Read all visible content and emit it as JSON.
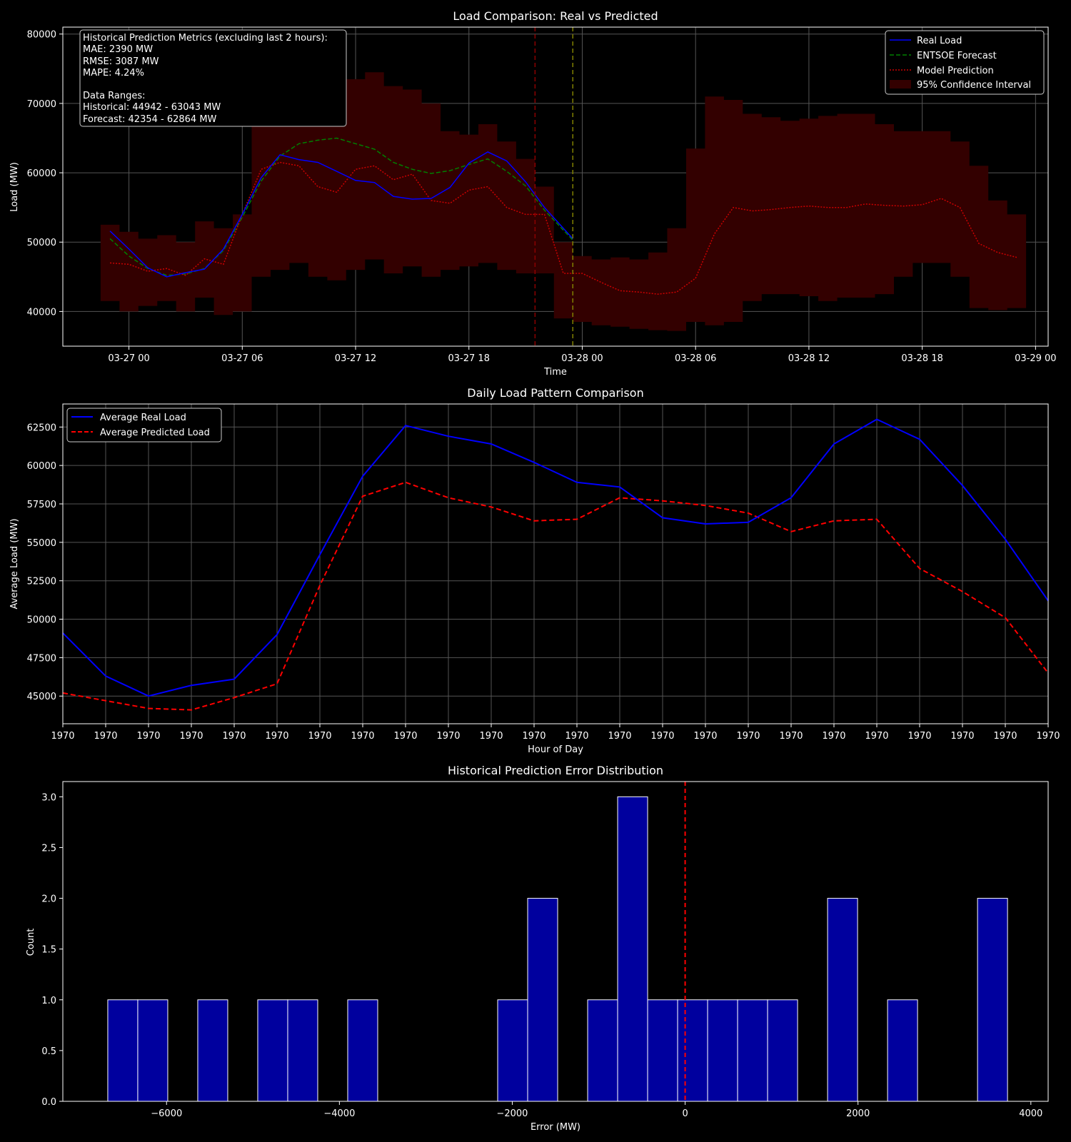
{
  "chart_data": [
    {
      "type": "line",
      "title": "Load Comparison: Real vs Predicted",
      "xlabel": "Time",
      "ylabel": "Load (MW)",
      "xlim": [
        "03-26 20:30",
        "03-29 00:40"
      ],
      "ylim": [
        35000,
        81000
      ],
      "x_ticks": [
        "03-27 00",
        "03-27 06",
        "03-27 12",
        "03-27 18",
        "03-28 00",
        "03-28 06",
        "03-28 12",
        "03-28 18",
        "03-29 00"
      ],
      "y_ticks": [
        40000,
        50000,
        60000,
        70000,
        80000
      ],
      "grid": true,
      "legend_position": "top-right",
      "legend": [
        "Real Load",
        "ENTSOE Forecast",
        "Model Prediction",
        "95% Confidence Interval"
      ],
      "colors": {
        "real": "#0000ff",
        "entsoe": "#008000",
        "model": "#cc0000",
        "band": "#330000",
        "vline_red": "#8b0000",
        "vline_yellow": "#808000"
      },
      "vlines": [
        {
          "time": "03-27 21:30",
          "style": "dashed",
          "color": "red"
        },
        {
          "time": "03-27 23:30",
          "style": "dashed",
          "color": "olive"
        }
      ],
      "annotation": {
        "lines": [
          "Historical Prediction Metrics (excluding last 2 hours):",
          "MAE: 2390 MW",
          "RMSE: 3087 MW",
          "MAPE: 4.24%",
          "",
          "Data Ranges:",
          "Historical: 44942 - 63043 MW",
          "Forecast: 42354 - 62864 MW"
        ]
      },
      "series": [
        {
          "name": "Real Load",
          "x": [
            "03-26 23:00",
            "03-27 00:00",
            "03-27 01:00",
            "03-27 02:00",
            "03-27 03:00",
            "03-27 04:00",
            "03-27 05:00",
            "03-27 06:00",
            "03-27 07:00",
            "03-27 08:00",
            "03-27 09:00",
            "03-27 10:00",
            "03-27 11:00",
            "03-27 12:00",
            "03-27 13:00",
            "03-27 14:00",
            "03-27 15:00",
            "03-27 16:00",
            "03-27 17:00",
            "03-27 18:00",
            "03-27 19:00",
            "03-27 20:00",
            "03-27 21:00",
            "03-27 22:00",
            "03-27 23:30"
          ],
          "y": [
            51600,
            49000,
            46300,
            45000,
            45600,
            46100,
            49000,
            54000,
            59300,
            62600,
            61900,
            61500,
            60200,
            58900,
            58600,
            56600,
            56200,
            56300,
            57900,
            61400,
            63000,
            61700,
            58700,
            55000,
            50500
          ]
        },
        {
          "name": "ENTSOE Forecast",
          "x": [
            "03-26 23:00",
            "03-27 00:00",
            "03-27 01:00",
            "03-27 02:00",
            "03-27 03:00",
            "03-27 04:00",
            "03-27 05:00",
            "03-27 06:00",
            "03-27 07:00",
            "03-27 08:00",
            "03-27 09:00",
            "03-27 10:00",
            "03-27 11:00",
            "03-27 12:00",
            "03-27 13:00",
            "03-27 14:00",
            "03-27 15:00",
            "03-27 16:00",
            "03-27 17:00",
            "03-27 18:00",
            "03-27 19:00",
            "03-27 20:00",
            "03-27 21:00",
            "03-27 22:00",
            "03-27 23:30"
          ],
          "y": [
            50500,
            48000,
            46200,
            45200,
            45400,
            46200,
            48800,
            53600,
            58800,
            62400,
            64200,
            64700,
            65000,
            64200,
            63400,
            61500,
            60500,
            59900,
            60300,
            61200,
            62000,
            60200,
            58100,
            54600,
            50300
          ]
        },
        {
          "name": "Model Prediction",
          "x": [
            "03-26 23:00",
            "03-27 00:00",
            "03-27 01:00",
            "03-27 02:00",
            "03-27 03:00",
            "03-27 04:00",
            "03-27 05:00",
            "03-27 06:00",
            "03-27 07:00",
            "03-27 08:00",
            "03-27 09:00",
            "03-27 10:00",
            "03-27 11:00",
            "03-27 12:00",
            "03-27 13:00",
            "03-27 14:00",
            "03-27 15:00",
            "03-27 16:00",
            "03-27 17:00",
            "03-27 18:00",
            "03-27 19:00",
            "03-27 20:00",
            "03-27 21:00",
            "03-27 22:00",
            "03-27 23:00",
            "03-28 00:00",
            "03-28 01:00",
            "03-28 02:00",
            "03-28 03:00",
            "03-28 04:00",
            "03-28 05:00",
            "03-28 06:00",
            "03-28 07:00",
            "03-28 08:00",
            "03-28 09:00",
            "03-28 10:00",
            "03-28 11:00",
            "03-28 12:00",
            "03-28 13:00",
            "03-28 14:00",
            "03-28 15:00",
            "03-28 16:00",
            "03-28 17:00",
            "03-28 18:00",
            "03-28 19:00",
            "03-28 20:00",
            "03-28 21:00",
            "03-28 22:00",
            "03-28 23:00"
          ],
          "y": [
            47000,
            46800,
            45800,
            46200,
            45200,
            47600,
            46800,
            54000,
            60500,
            61500,
            61000,
            58000,
            57200,
            60500,
            61000,
            59000,
            59800,
            56000,
            55600,
            57500,
            58000,
            55000,
            54000,
            54000,
            45500,
            45500,
            44200,
            43000,
            42800,
            42500,
            42800,
            44800,
            51200,
            55000,
            54500,
            54700,
            55000,
            55200,
            55000,
            55000,
            55500,
            55300,
            55200,
            55400,
            56300,
            55000,
            49800,
            48500,
            47800
          ]
        },
        {
          "name": "95% Confidence Interval",
          "x": [
            "03-26 23:00",
            "03-27 00:00",
            "03-27 01:00",
            "03-27 02:00",
            "03-27 03:00",
            "03-27 04:00",
            "03-27 05:00",
            "03-27 06:00",
            "03-27 07:00",
            "03-27 08:00",
            "03-27 09:00",
            "03-27 10:00",
            "03-27 11:00",
            "03-27 12:00",
            "03-27 13:00",
            "03-27 14:00",
            "03-27 15:00",
            "03-27 16:00",
            "03-27 17:00",
            "03-27 18:00",
            "03-27 19:00",
            "03-27 20:00",
            "03-27 21:00",
            "03-27 22:00",
            "03-27 23:00",
            "03-28 00:00",
            "03-28 01:00",
            "03-28 02:00",
            "03-28 03:00",
            "03-28 04:00",
            "03-28 05:00",
            "03-28 06:00",
            "03-28 07:00",
            "03-28 08:00",
            "03-28 09:00",
            "03-28 10:00",
            "03-28 11:00",
            "03-28 12:00",
            "03-28 13:00",
            "03-28 14:00",
            "03-28 15:00",
            "03-28 16:00",
            "03-28 17:00",
            "03-28 18:00",
            "03-28 19:00",
            "03-28 20:00",
            "03-28 21:00",
            "03-28 22:00",
            "03-28 23:00"
          ],
          "lower": [
            41500,
            40000,
            40800,
            41500,
            40000,
            42000,
            39500,
            40000,
            45000,
            46000,
            47000,
            45000,
            44500,
            46000,
            47500,
            45500,
            46500,
            45000,
            46000,
            46500,
            47000,
            46000,
            45500,
            45500,
            39000,
            38500,
            38000,
            37800,
            37500,
            37300,
            37200,
            38500,
            38000,
            38500,
            41500,
            42500,
            42500,
            42200,
            41500,
            42000,
            42000,
            42500,
            45000,
            47000,
            47000,
            45000,
            40500,
            40200,
            40500
          ],
          "upper": [
            52500,
            51500,
            50500,
            51000,
            50000,
            53000,
            52000,
            54000,
            76000,
            78500,
            74500,
            72000,
            70000,
            73500,
            74500,
            72500,
            72000,
            70000,
            66000,
            65500,
            67000,
            64500,
            62000,
            58000,
            50000,
            48000,
            47500,
            47800,
            47500,
            48500,
            52000,
            63500,
            71000,
            70500,
            68500,
            68000,
            67500,
            67800,
            68200,
            68500,
            68500,
            67000,
            66000,
            66000,
            66000,
            64500,
            61000,
            56000,
            54000
          ]
        }
      ]
    },
    {
      "type": "line",
      "title": "Daily Load Pattern Comparison",
      "xlabel": "Hour of Day",
      "ylabel": "Average Load (MW)",
      "x_tick_labels": [
        "1970",
        "1970",
        "1970",
        "1970",
        "1970",
        "1970",
        "1970",
        "1970",
        "1970",
        "1970",
        "1970",
        "1970",
        "1970",
        "1970",
        "1970",
        "1970",
        "1970",
        "1970",
        "1970",
        "1970",
        "1970",
        "1970",
        "1970",
        "1970"
      ],
      "xlim": [
        0,
        23
      ],
      "ylim": [
        43200,
        64000
      ],
      "y_ticks": [
        45000,
        47500,
        50000,
        52500,
        55000,
        57500,
        60000,
        62500
      ],
      "grid": true,
      "legend_position": "top-left",
      "legend": [
        "Average Real Load",
        "Average Predicted Load"
      ],
      "colors": {
        "real": "#0000ff",
        "pred": "#ff0000"
      },
      "series": [
        {
          "name": "Average Real Load",
          "x": [
            0,
            1,
            2,
            3,
            4,
            5,
            6,
            7,
            8,
            9,
            10,
            11,
            12,
            13,
            14,
            15,
            16,
            17,
            18,
            19,
            20,
            21,
            22,
            23
          ],
          "values": [
            49100,
            46300,
            45000,
            45700,
            46100,
            49000,
            54200,
            59300,
            62600,
            61900,
            61400,
            60200,
            58900,
            58600,
            56600,
            56200,
            56300,
            57900,
            61400,
            63000,
            61700,
            58700,
            55200,
            51200
          ]
        },
        {
          "name": "Average Predicted Load",
          "x": [
            0,
            1,
            2,
            3,
            4,
            5,
            6,
            7,
            8,
            9,
            10,
            11,
            12,
            13,
            14,
            15,
            16,
            17,
            18,
            19,
            20,
            21,
            22,
            23
          ],
          "values": [
            45200,
            44700,
            44200,
            44100,
            44900,
            45800,
            52200,
            58000,
            58900,
            57900,
            57300,
            56400,
            56500,
            57900,
            57700,
            57400,
            56900,
            55700,
            56400,
            56500,
            53300,
            51800,
            50100,
            46500
          ]
        }
      ]
    },
    {
      "type": "bar",
      "title": "Historical Prediction Error Distribution",
      "xlabel": "Error (MW)",
      "ylabel": "Count",
      "xlim": [
        -7200,
        4200
      ],
      "ylim": [
        0,
        3.15
      ],
      "x_ticks": [
        -6000,
        -4000,
        -2000,
        0,
        2000,
        4000
      ],
      "y_ticks": [
        0.0,
        0.5,
        1.0,
        1.5,
        2.0,
        2.5,
        3.0
      ],
      "bin_width": 347,
      "bin_start": -6680,
      "counts": [
        1,
        1,
        0,
        1,
        0,
        1,
        1,
        0,
        1,
        0,
        0,
        0,
        0,
        1,
        2,
        0,
        1,
        3,
        1,
        1,
        1,
        1,
        1,
        0,
        2,
        0,
        1,
        0,
        0,
        2
      ],
      "vline": 0,
      "colors": {
        "bar": "#00009e",
        "edge": "#ffffff",
        "vline": "#ff0000"
      }
    }
  ]
}
